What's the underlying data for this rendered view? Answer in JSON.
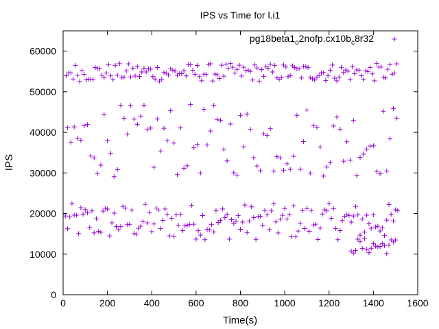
{
  "chart_data": {
    "type": "scatter",
    "title": "IPS vs Time for l.i1",
    "xlabel": "Time(s)",
    "ylabel": "IPS",
    "xlim": [
      0,
      1600
    ],
    "ylim": [
      0,
      65000
    ],
    "xticks": [
      0,
      200,
      400,
      600,
      800,
      1000,
      1200,
      1400,
      1600
    ],
    "yticks": [
      0,
      10000,
      20000,
      30000,
      40000,
      50000,
      60000
    ],
    "grid": false,
    "legend_position": "top-right",
    "series": [
      {
        "legend_parts": [
          "pg18beta1",
          "o",
          "2nofp.cx10b",
          "c",
          "8r32"
        ],
        "color": "#9400d3",
        "marker": "plus",
        "bands": [
          {
            "x_start": 10,
            "x_end": 1510,
            "step": 10,
            "y_low": 13500,
            "y_high": 22500
          },
          {
            "x_start": 15,
            "x_end": 1510,
            "step": 10,
            "y_low": 52500,
            "y_high": 57000
          },
          {
            "x_start": 20,
            "x_end": 1505,
            "step": 15,
            "y_low": 29000,
            "y_high": 47000
          },
          {
            "x_start": 1300,
            "x_end": 1500,
            "step": 10,
            "y_low": 10000,
            "y_high": 14000
          }
        ]
      }
    ]
  }
}
